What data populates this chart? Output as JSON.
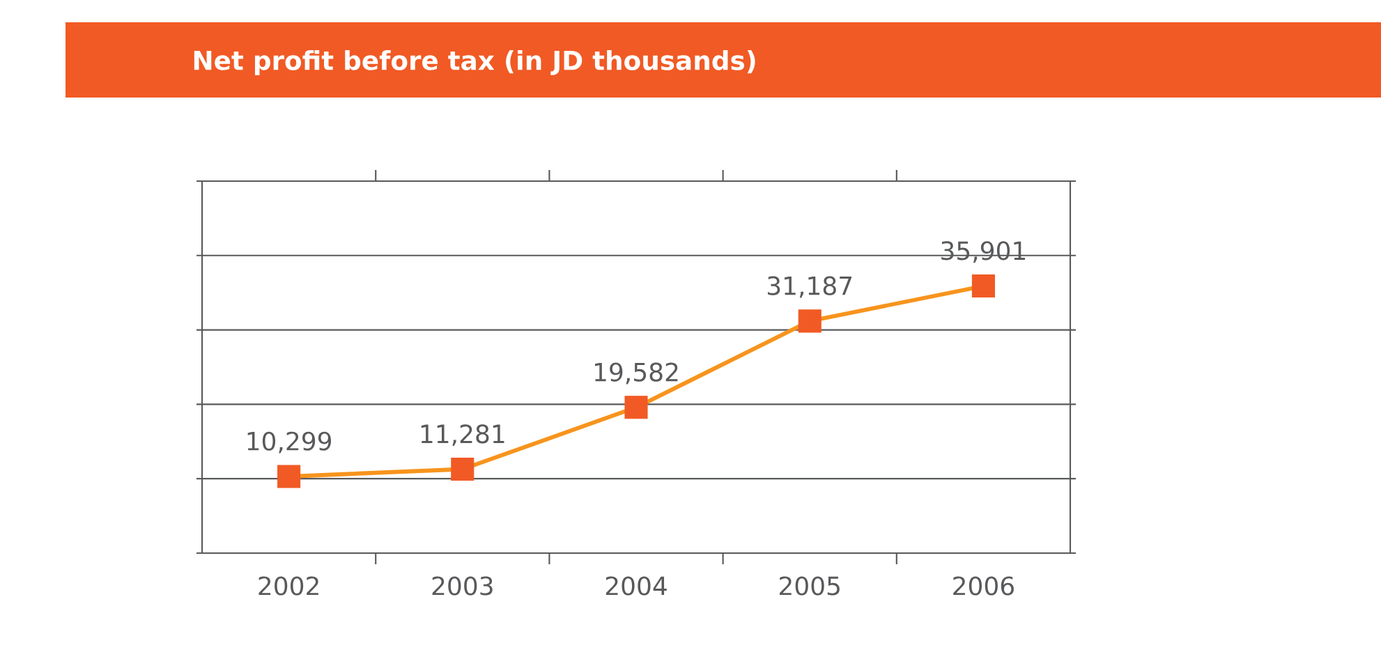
{
  "chart_data": {
    "type": "line",
    "title": "Net profit before tax (in JD thousands)",
    "categories": [
      "2002",
      "2003",
      "2004",
      "2005",
      "2006"
    ],
    "series": [
      {
        "color": "#f7941d",
        "colors": [
          "#f15a24",
          "#f15a24",
          "#f15a24",
          "#f15a24",
          "#f15a24"
        ],
        "values": [
          10299,
          11281,
          19582,
          31187,
          35901
        ],
        "value_labels": [
          "10,299",
          "11,281",
          "19,582",
          "31,187",
          "35,901"
        ]
      }
    ],
    "ylim": [
      0,
      50000
    ],
    "yticks": [
      {
        "value": 0,
        "label": null
      },
      {
        "value": 10000,
        "label": null
      },
      {
        "value": 20000,
        "label": null
      },
      {
        "value": 30000,
        "label": null
      },
      {
        "value": 40000,
        "label": null
      },
      {
        "value": 50000,
        "label": null
      }
    ],
    "tick_labels": "x",
    "grid": "y",
    "marker": "square",
    "line_style": "solid"
  }
}
